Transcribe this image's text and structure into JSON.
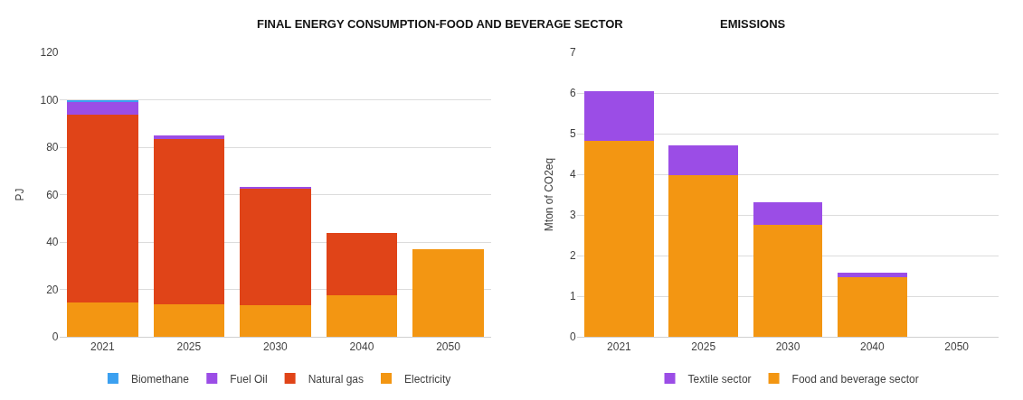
{
  "chart_data": [
    {
      "type": "bar",
      "title": "FINAL ENERGY CONSUMPTION-FOOD AND BEVERAGE SECTOR",
      "ylabel": "PJ",
      "categories": [
        "2021",
        "2025",
        "2030",
        "2040",
        "2050"
      ],
      "stacked": true,
      "ylim": [
        0,
        120
      ],
      "yticks": [
        0,
        20,
        40,
        60,
        80,
        100,
        120
      ],
      "grid": "y",
      "legend": "bottom",
      "series": [
        {
          "name": "Electricity",
          "color": "#f39612",
          "values": [
            14.5,
            13.6,
            13.2,
            17.5,
            37
          ]
        },
        {
          "name": "Natural gas",
          "color": "#e04418",
          "values": [
            79.1,
            69.7,
            49.6,
            26.3,
            0
          ]
        },
        {
          "name": "Fuel Oil",
          "color": "#9b4de6",
          "values": [
            5.8,
            1.5,
            0.4,
            0,
            0
          ]
        },
        {
          "name": "Biomethane",
          "color": "#3ba0f0",
          "values": [
            0.6,
            0,
            0,
            0,
            0
          ]
        }
      ]
    },
    {
      "type": "bar",
      "title": "EMISSIONS",
      "ylabel": "Mton of CO2eq",
      "categories": [
        "2021",
        "2025",
        "2030",
        "2040",
        "2050"
      ],
      "stacked": true,
      "ylim": [
        0,
        7
      ],
      "yticks": [
        0,
        1,
        2,
        3,
        4,
        5,
        6,
        7
      ],
      "grid": "y",
      "legend": "bottom",
      "series": [
        {
          "name": "Food and beverage sector",
          "color": "#f39612",
          "values": [
            4.82,
            3.98,
            2.76,
            1.46,
            0
          ]
        },
        {
          "name": "Textile sector",
          "color": "#9b4de6",
          "values": [
            1.23,
            0.73,
            0.56,
            0.11,
            0
          ]
        }
      ]
    }
  ]
}
